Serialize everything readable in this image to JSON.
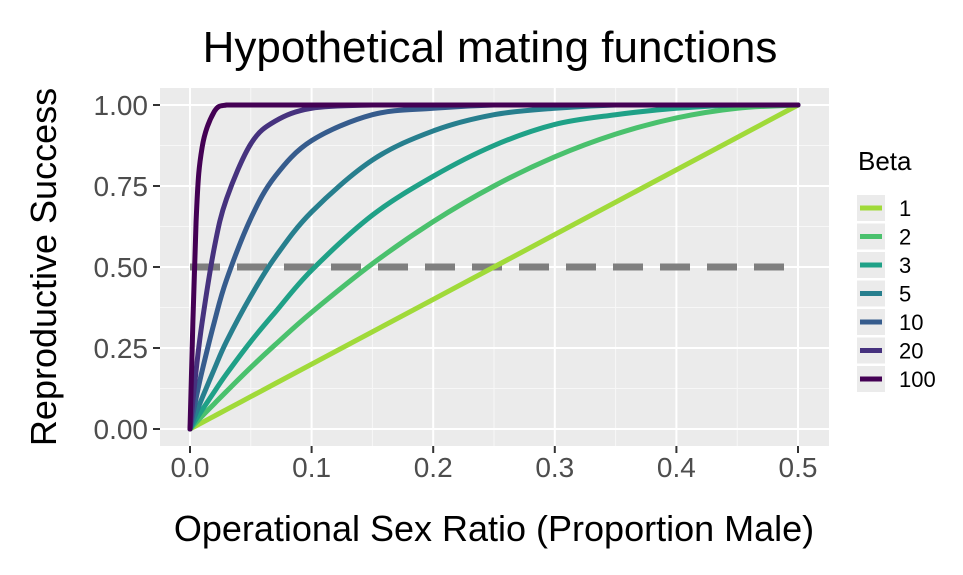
{
  "chart_data": {
    "type": "line",
    "title": "Hypothetical mating functions",
    "xlabel": "Operational Sex Ratio (Proportion Male)",
    "ylabel": "Reproductive Success",
    "xlim": [
      0,
      0.5
    ],
    "ylim": [
      0,
      1
    ],
    "x_ticks": [
      "0.0",
      "0.1",
      "0.2",
      "0.3",
      "0.4",
      "0.5"
    ],
    "x_tick_values": [
      0,
      0.1,
      0.2,
      0.3,
      0.4,
      0.5
    ],
    "y_ticks": [
      "0.00",
      "0.25",
      "0.50",
      "0.75",
      "1.00"
    ],
    "y_tick_values": [
      0,
      0.25,
      0.5,
      0.75,
      1.0
    ],
    "grid": true,
    "legend_title": "Beta",
    "legend_position": "right",
    "reference_line": {
      "y": 0.5,
      "style": "dashed",
      "color": "#7f7f7f"
    },
    "x": [
      0,
      0.005,
      0.01,
      0.02,
      0.03,
      0.05,
      0.07,
      0.1,
      0.15,
      0.2,
      0.25,
      0.3,
      0.35,
      0.4,
      0.45,
      0.5
    ],
    "series": [
      {
        "name": "1",
        "color": "#a0da39",
        "values": [
          0,
          0.01,
          0.02,
          0.04,
          0.06,
          0.1,
          0.14,
          0.2,
          0.3,
          0.4,
          0.5,
          0.6,
          0.7,
          0.8,
          0.9,
          1.0
        ]
      },
      {
        "name": "2",
        "color": "#4ac16d",
        "values": [
          0,
          0.02,
          0.04,
          0.078,
          0.116,
          0.19,
          0.26,
          0.36,
          0.51,
          0.64,
          0.75,
          0.84,
          0.91,
          0.96,
          0.99,
          1.0
        ]
      },
      {
        "name": "3",
        "color": "#1fa187",
        "values": [
          0,
          0.03,
          0.059,
          0.115,
          0.17,
          0.27,
          0.36,
          0.49,
          0.66,
          0.78,
          0.875,
          0.94,
          0.97,
          0.99,
          1.0,
          1.0
        ]
      },
      {
        "name": "5",
        "color": "#277f8e",
        "values": [
          0,
          0.049,
          0.096,
          0.185,
          0.27,
          0.41,
          0.53,
          0.67,
          0.83,
          0.92,
          0.97,
          0.99,
          1.0,
          1.0,
          1.0,
          1.0
        ]
      },
      {
        "name": "10",
        "color": "#365c8d",
        "values": [
          0,
          0.095,
          0.18,
          0.33,
          0.46,
          0.65,
          0.78,
          0.89,
          0.97,
          0.99,
          1.0,
          1.0,
          1.0,
          1.0,
          1.0,
          1.0
        ]
      },
      {
        "name": "20",
        "color": "#46327e",
        "values": [
          0,
          0.18,
          0.33,
          0.56,
          0.71,
          0.88,
          0.95,
          0.99,
          1.0,
          1.0,
          1.0,
          1.0,
          1.0,
          1.0,
          1.0,
          1.0
        ]
      },
      {
        "name": "100",
        "color": "#440154",
        "values": [
          0,
          0.64,
          0.87,
          0.98,
          1.0,
          1.0,
          1.0,
          1.0,
          1.0,
          1.0,
          1.0,
          1.0,
          1.0,
          1.0,
          1.0,
          1.0
        ]
      }
    ]
  }
}
